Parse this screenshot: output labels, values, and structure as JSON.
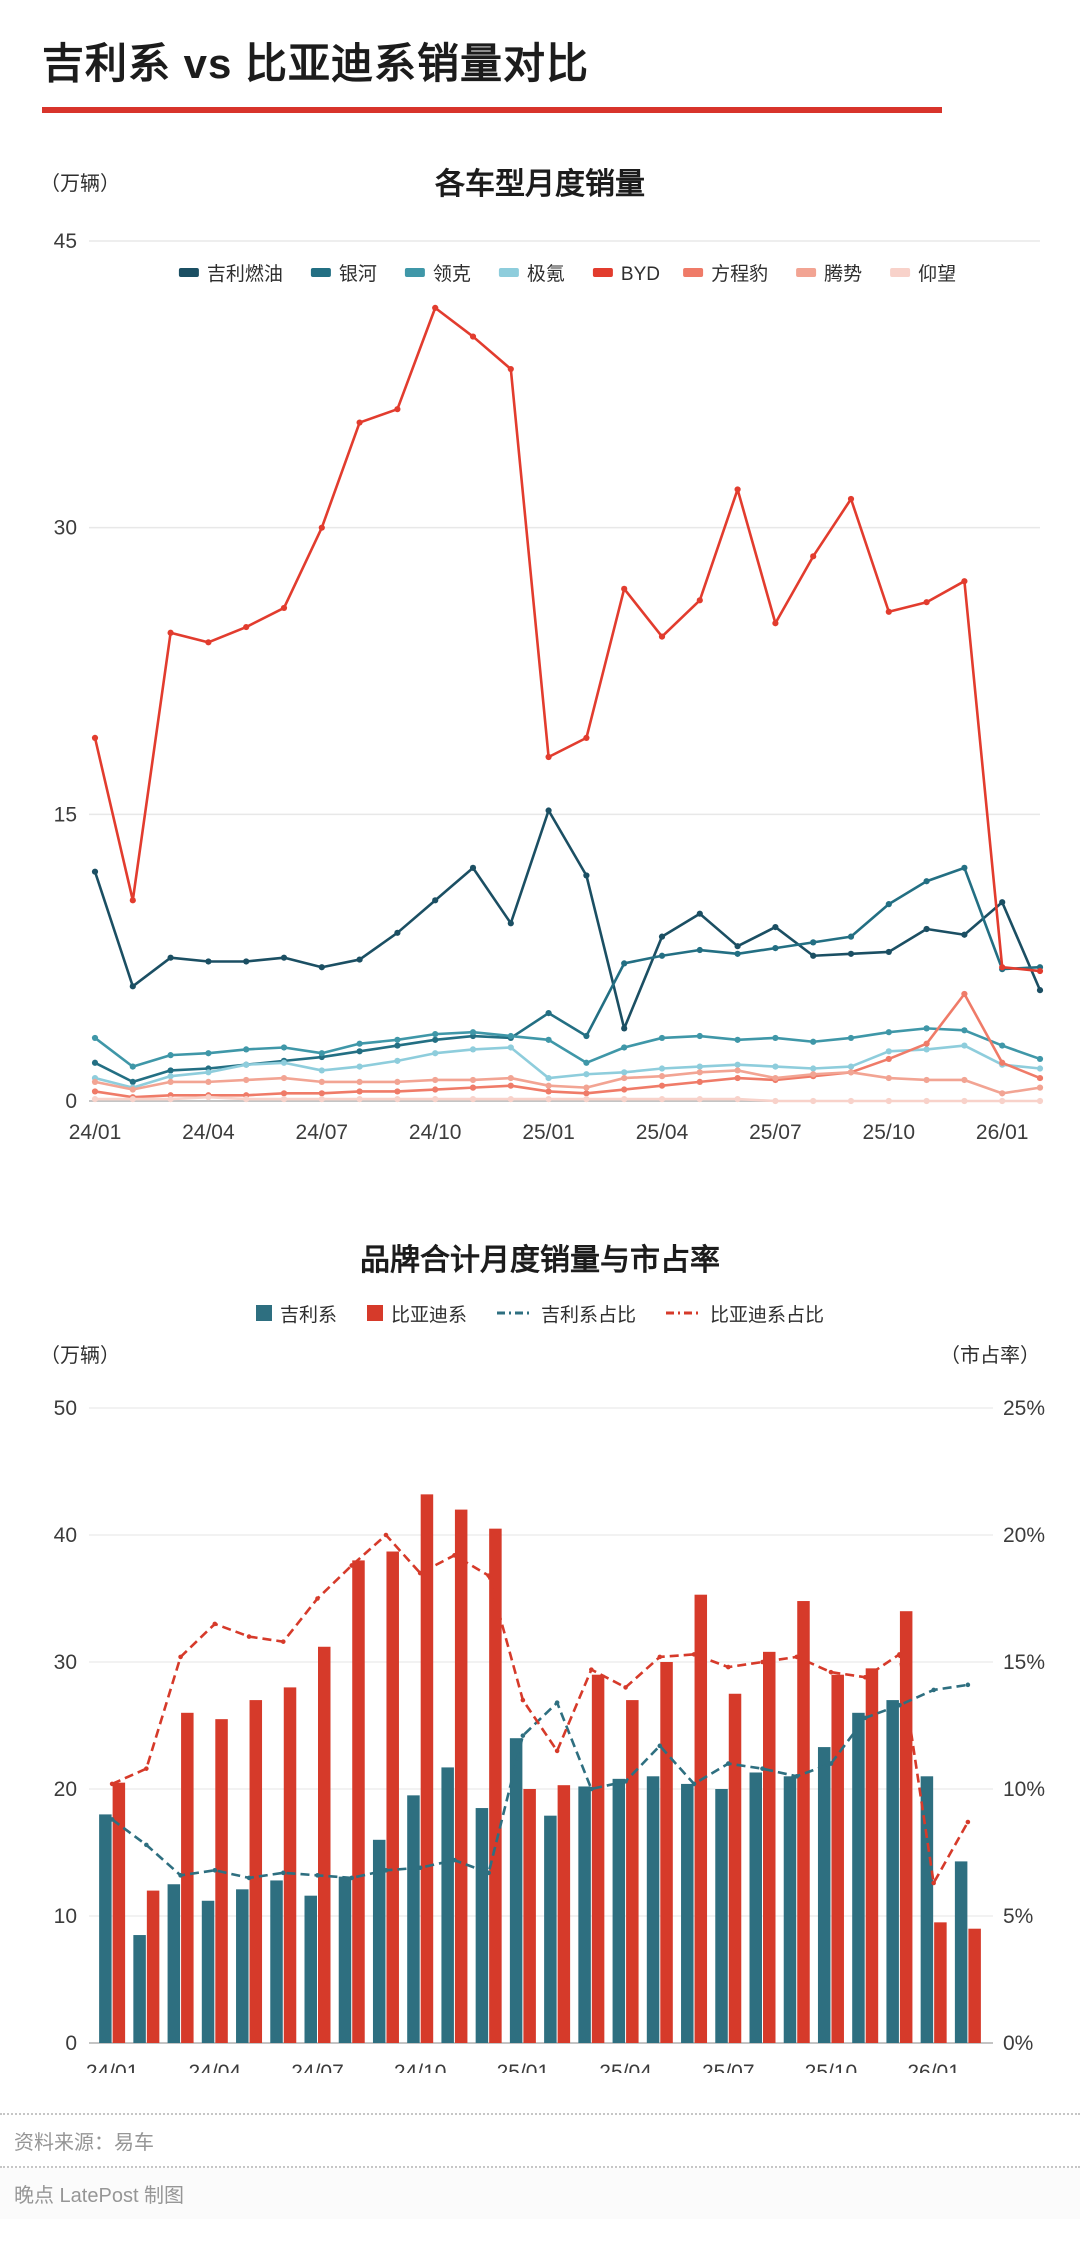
{
  "page": {
    "title": "吉利系 vs 比亚迪系销量对比",
    "accent_red": "#d8342b",
    "footer": {
      "source": "资料来源：易车",
      "credit": "晚点 LatePost 制图"
    }
  },
  "chart_data": [
    {
      "type": "line",
      "title": "各车型月度销量",
      "unit_label": "（万辆）",
      "x": [
        "24/01",
        "24/02",
        "24/03",
        "24/04",
        "24/05",
        "24/06",
        "24/07",
        "24/08",
        "24/09",
        "24/10",
        "24/11",
        "24/12",
        "25/01",
        "25/02",
        "25/03",
        "25/04",
        "25/05",
        "25/06",
        "25/07",
        "25/08",
        "25/09",
        "25/10",
        "25/11",
        "25/12",
        "26/01",
        "26/02"
      ],
      "x_tick_labels": [
        "24/01",
        "24/04",
        "24/07",
        "24/10",
        "25/01",
        "25/04",
        "25/07",
        "25/10",
        "26/01"
      ],
      "ylim": [
        0,
        45
      ],
      "yticks": [
        0,
        15,
        30,
        45
      ],
      "grid": true,
      "legend_position": "top",
      "series": [
        {
          "name": "吉利燃油",
          "color": "#1b4f63",
          "values": [
            12.0,
            6.0,
            7.5,
            7.3,
            7.3,
            7.5,
            7.0,
            7.4,
            8.8,
            10.5,
            12.2,
            9.3,
            15.2,
            11.8,
            3.8,
            8.6,
            9.8,
            8.1,
            9.1,
            7.6,
            7.7,
            7.8,
            9.0,
            8.7,
            10.4,
            5.8
          ]
        },
        {
          "name": "银河",
          "color": "#236f83",
          "values": [
            2.0,
            1.0,
            1.6,
            1.7,
            1.9,
            2.1,
            2.3,
            2.6,
            2.9,
            3.2,
            3.4,
            3.3,
            4.6,
            3.4,
            7.2,
            7.6,
            7.9,
            7.7,
            8.0,
            8.3,
            8.6,
            10.3,
            11.5,
            12.2,
            6.9,
            7.0
          ]
        },
        {
          "name": "领克",
          "color": "#3f97a8",
          "values": [
            3.3,
            1.8,
            2.4,
            2.5,
            2.7,
            2.8,
            2.5,
            3.0,
            3.2,
            3.5,
            3.6,
            3.4,
            3.2,
            2.0,
            2.8,
            3.3,
            3.4,
            3.2,
            3.3,
            3.1,
            3.3,
            3.6,
            3.8,
            3.7,
            2.9,
            2.2
          ]
        },
        {
          "name": "极氪",
          "color": "#8ecddc",
          "values": [
            1.2,
            0.7,
            1.3,
            1.5,
            1.9,
            2.0,
            1.6,
            1.8,
            2.1,
            2.5,
            2.7,
            2.8,
            1.2,
            1.4,
            1.5,
            1.7,
            1.8,
            1.9,
            1.8,
            1.7,
            1.8,
            2.6,
            2.7,
            2.9,
            1.9,
            1.7
          ]
        },
        {
          "name": "BYD",
          "color": "#e23c2e",
          "values": [
            19.0,
            10.5,
            24.5,
            24.0,
            24.8,
            25.8,
            30.0,
            35.5,
            36.2,
            41.5,
            40.0,
            38.3,
            18.0,
            19.0,
            26.8,
            24.3,
            26.2,
            32.0,
            25.0,
            28.5,
            31.5,
            25.6,
            26.1,
            27.2,
            7.0,
            6.8
          ]
        },
        {
          "name": "方程豹",
          "color": "#ef7b68",
          "values": [
            0.5,
            0.2,
            0.3,
            0.3,
            0.3,
            0.4,
            0.4,
            0.5,
            0.5,
            0.6,
            0.7,
            0.8,
            0.5,
            0.4,
            0.6,
            0.8,
            1.0,
            1.2,
            1.1,
            1.3,
            1.5,
            2.2,
            3.0,
            5.6,
            2.0,
            1.2
          ]
        },
        {
          "name": "腾势",
          "color": "#f2a493",
          "values": [
            1.0,
            0.6,
            1.0,
            1.0,
            1.1,
            1.2,
            1.0,
            1.0,
            1.0,
            1.1,
            1.1,
            1.2,
            0.8,
            0.7,
            1.2,
            1.3,
            1.5,
            1.6,
            1.2,
            1.4,
            1.5,
            1.2,
            1.1,
            1.1,
            0.4,
            0.7
          ]
        },
        {
          "name": "仰望",
          "color": "#f8d2ca",
          "values": [
            0.1,
            0.1,
            0.1,
            0.2,
            0.1,
            0.1,
            0.1,
            0.1,
            0.1,
            0.1,
            0.1,
            0.1,
            0.1,
            0.1,
            0.1,
            0.1,
            0.1,
            0.1,
            0.0,
            0.0,
            0.0,
            0.0,
            0.0,
            0.0,
            0.0,
            0.0
          ]
        }
      ]
    },
    {
      "type": "bar",
      "title": "品牌合计月度销量与市占率",
      "unit_label_left": "（万辆）",
      "unit_label_right": "（市占率）",
      "x": [
        "24/01",
        "24/02",
        "24/03",
        "24/04",
        "24/05",
        "24/06",
        "24/07",
        "24/08",
        "24/09",
        "24/10",
        "24/11",
        "24/12",
        "25/01",
        "25/02",
        "25/03",
        "25/04",
        "25/05",
        "25/06",
        "25/07",
        "25/08",
        "25/09",
        "25/10",
        "25/11",
        "25/12",
        "26/01",
        "26/02"
      ],
      "x_tick_labels": [
        "24/01",
        "24/04",
        "24/07",
        "24/10",
        "25/01",
        "25/04",
        "25/07",
        "25/10",
        "26/01"
      ],
      "ylim_left": [
        0,
        50
      ],
      "yticks_left": [
        0,
        10,
        20,
        30,
        40,
        50
      ],
      "ylim_right": [
        0,
        25
      ],
      "yticks_right": [
        "0%",
        "5%",
        "10%",
        "15%",
        "20%",
        "25%"
      ],
      "grid": true,
      "legend_position": "top",
      "bars": [
        {
          "name": "吉利系",
          "color": "#2e6f80",
          "values": [
            18.0,
            8.5,
            12.5,
            11.2,
            12.1,
            12.8,
            11.6,
            13.1,
            16.0,
            19.5,
            21.7,
            18.5,
            24.0,
            17.9,
            20.2,
            20.8,
            21.0,
            20.4,
            20.0,
            21.3,
            21.0,
            23.3,
            26.0,
            27.0,
            21.0,
            14.3
          ]
        },
        {
          "name": "比亚迪系",
          "color": "#d63a2a",
          "values": [
            20.5,
            12.0,
            26.0,
            25.5,
            27.0,
            28.0,
            31.2,
            38.0,
            38.7,
            43.2,
            42.0,
            40.5,
            20.0,
            20.3,
            29.0,
            27.0,
            30.0,
            35.3,
            27.5,
            30.8,
            34.8,
            29.0,
            29.5,
            34.0,
            9.5,
            9.0
          ]
        }
      ],
      "lines": [
        {
          "name": "吉利系占比",
          "color": "#2e6f80",
          "values": [
            8.8,
            7.8,
            6.6,
            6.8,
            6.5,
            6.7,
            6.6,
            6.5,
            6.8,
            6.9,
            7.2,
            6.7,
            12.1,
            13.4,
            10.0,
            10.3,
            11.7,
            10.2,
            11.0,
            10.8,
            10.5,
            11.0,
            12.8,
            13.3,
            13.9,
            14.1
          ]
        },
        {
          "name": "比亚迪系占比",
          "color": "#d63a2a",
          "values": [
            10.2,
            10.8,
            15.2,
            16.5,
            16.0,
            15.8,
            17.5,
            18.8,
            20.0,
            18.5,
            19.2,
            18.4,
            13.5,
            11.5,
            14.7,
            14.0,
            15.2,
            15.3,
            14.8,
            15.0,
            15.2,
            14.6,
            14.4,
            15.3,
            6.3,
            8.7
          ]
        }
      ]
    }
  ]
}
